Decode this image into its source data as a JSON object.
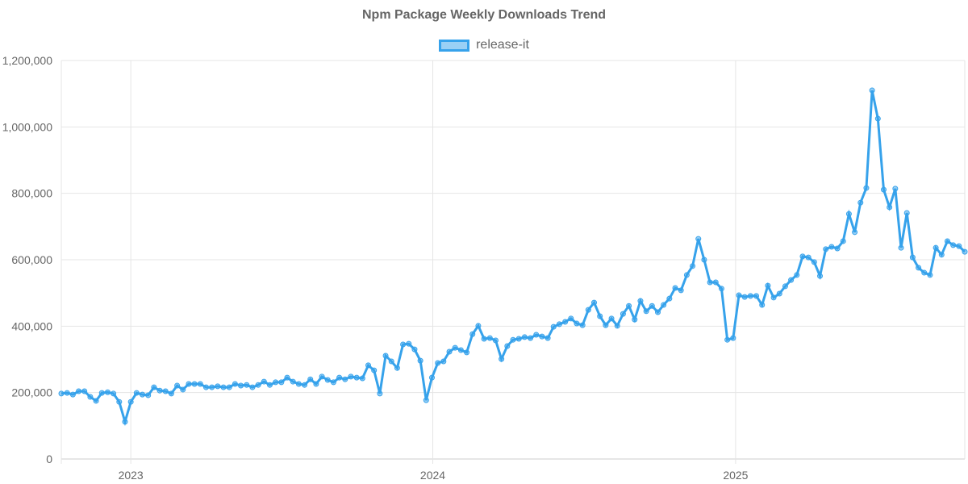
{
  "chart_data": {
    "type": "line",
    "title": "Npm Package Weekly Downloads Trend",
    "xlabel": "",
    "ylabel": "",
    "legend": {
      "position": "top",
      "entries": [
        "release-it"
      ]
    },
    "grid": true,
    "ylim": [
      0,
      1200000
    ],
    "y_ticks": [
      "0",
      "200,000",
      "400,000",
      "600,000",
      "800,000",
      "1,000,000",
      "1,200,000"
    ],
    "y_tick_values": [
      0,
      200000,
      400000,
      600000,
      800000,
      1000000,
      1200000
    ],
    "x_ticks": [
      "2023",
      "2024",
      "2025"
    ],
    "x_tick_dates": [
      "2023-01-01",
      "2024-01-01",
      "2025-01-01"
    ],
    "x_start": "2022-10-09",
    "x_step_days": 7,
    "series": [
      {
        "name": "release-it",
        "color": "#36a2eb",
        "values": [
          197000,
          199000,
          194000,
          204000,
          204000,
          187000,
          175000,
          199000,
          201000,
          197000,
          172000,
          112000,
          172000,
          199000,
          194000,
          192000,
          216000,
          206000,
          204000,
          197000,
          221000,
          209000,
          226000,
          226000,
          226000,
          216000,
          216000,
          219000,
          216000,
          216000,
          226000,
          221000,
          223000,
          216000,
          223000,
          233000,
          223000,
          231000,
          231000,
          245000,
          233000,
          226000,
          223000,
          240000,
          226000,
          248000,
          238000,
          231000,
          245000,
          240000,
          248000,
          245000,
          243000,
          282000,
          267000,
          197000,
          311000,
          294000,
          274000,
          345000,
          347000,
          330000,
          296000,
          177000,
          245000,
          289000,
          294000,
          323000,
          335000,
          328000,
          321000,
          376000,
          401000,
          362000,
          364000,
          357000,
          301000,
          340000,
          359000,
          362000,
          367000,
          364000,
          374000,
          369000,
          364000,
          398000,
          406000,
          413000,
          423000,
          408000,
          403000,
          449000,
          471000,
          430000,
          403000,
          423000,
          401000,
          437000,
          461000,
          420000,
          476000,
          445000,
          461000,
          442000,
          464000,
          483000,
          515000,
          508000,
          554000,
          581000,
          663000,
          600000,
          532000,
          532000,
          513000,
          359000,
          364000,
          493000,
          488000,
          491000,
          491000,
          464000,
          522000,
          486000,
          498000,
          520000,
          539000,
          554000,
          610000,
          607000,
          593000,
          551000,
          632000,
          639000,
          634000,
          656000,
          738000,
          683000,
          772000,
          816000,
          1110000,
          1025000,
          811000,
          758000,
          814000,
          636000,
          741000,
          607000,
          576000,
          561000,
          554000,
          636000,
          615000,
          656000,
          644000,
          641000,
          624000
        ]
      }
    ]
  }
}
